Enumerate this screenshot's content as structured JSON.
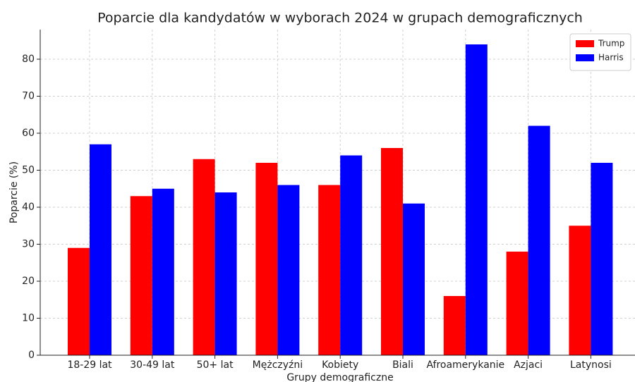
{
  "chart_data": {
    "type": "bar",
    "title": "Poparcie dla kandydatów w wyborach 2024 w grupach demograficznych",
    "xlabel": "Grupy demograficzne",
    "ylabel": "Poparcie (%)",
    "categories": [
      "18-29 lat",
      "30-49 lat",
      "50+ lat",
      "Mężczyźni",
      "Kobiety",
      "Biali",
      "Afroamerykanie",
      "Azjaci",
      "Latynosi"
    ],
    "series": [
      {
        "name": "Trump",
        "color": "#ff0000",
        "values": [
          29,
          43,
          53,
          52,
          46,
          56,
          16,
          28,
          35
        ]
      },
      {
        "name": "Harris",
        "color": "#0000ff",
        "values": [
          57,
          45,
          44,
          46,
          54,
          41,
          84,
          62,
          52
        ]
      }
    ],
    "ylim": [
      0,
      88
    ],
    "yticks": [
      0,
      10,
      20,
      30,
      40,
      50,
      60,
      70,
      80
    ],
    "grid": true,
    "legend": "upper right"
  }
}
